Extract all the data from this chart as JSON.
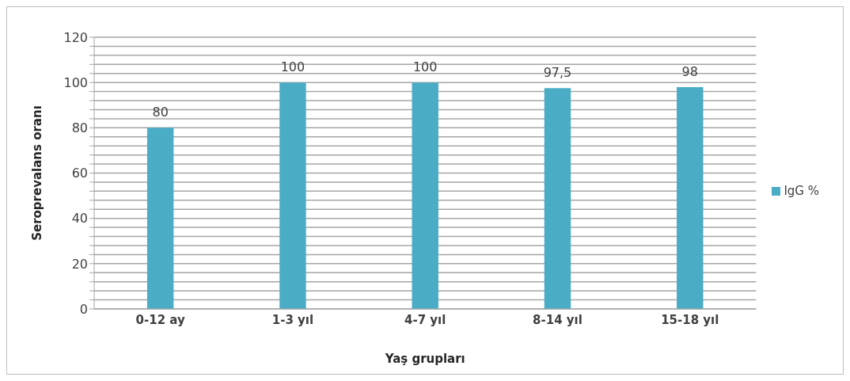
{
  "chart_data": {
    "type": "bar",
    "xlabel": "Yaş grupları",
    "ylabel": "Seroprevalans oranı",
    "categories": [
      "0-12 ay",
      "1-3 yıl",
      "4-7 yıl",
      "8-14 yıl",
      "15-18 yıl"
    ],
    "series": [
      {
        "name": "IgG %",
        "color": "#4bacc6",
        "values": [
          80,
          100,
          100,
          97.5,
          98
        ]
      }
    ],
    "value_labels": [
      "80",
      "100",
      "100",
      "97,5",
      "98"
    ],
    "ylim": [
      0,
      120
    ],
    "yticks": [
      0,
      {
        "value": 4,
        "label": null
      },
      {
        "value": 8,
        "label": null
      },
      {
        "value": 12,
        "label": null
      },
      {
        "value": 16,
        "label": null
      },
      20,
      {
        "value": 24,
        "label": null
      },
      {
        "value": 28,
        "label": null
      },
      {
        "value": 32,
        "label": null
      },
      {
        "value": 36,
        "label": null
      },
      40,
      {
        "value": 44,
        "label": null
      },
      {
        "value": 48,
        "label": null
      },
      {
        "value": 52,
        "label": null
      },
      {
        "value": 56,
        "label": null
      },
      60,
      {
        "value": 64,
        "label": null
      },
      {
        "value": 68,
        "label": null
      },
      {
        "value": 72,
        "label": null
      },
      {
        "value": 76,
        "label": null
      },
      80,
      {
        "value": 84,
        "label": null
      },
      {
        "value": 88,
        "label": null
      },
      {
        "value": 92,
        "label": null
      },
      {
        "value": 96,
        "label": null
      },
      100,
      {
        "value": 104,
        "label": null
      },
      {
        "value": 108,
        "label": null
      },
      {
        "value": 112,
        "label": null
      },
      {
        "value": 116,
        "label": null
      },
      120
    ],
    "grid": "y",
    "legend": "right"
  }
}
